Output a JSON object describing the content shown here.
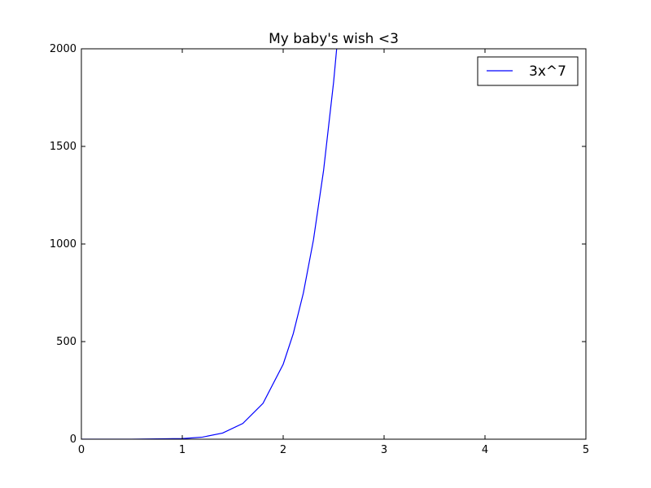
{
  "chart_data": {
    "type": "line",
    "title": "My baby's wish <3",
    "xlabel": "",
    "ylabel": "",
    "xlim": [
      0,
      5
    ],
    "ylim": [
      0,
      2000
    ],
    "x_ticks": [
      "0",
      "1",
      "2",
      "3",
      "4",
      "5"
    ],
    "y_ticks": [
      "0",
      "500",
      "1000",
      "1500",
      "2000"
    ],
    "grid": false,
    "legend_position": "top-right",
    "series": [
      {
        "name": "3x^7",
        "color": "#0000ff",
        "x": [
          0,
          0.5,
          1.0,
          1.2,
          1.4,
          1.6,
          1.8,
          2.0,
          2.1,
          2.2,
          2.3,
          2.4,
          2.5,
          2.53
        ],
        "y": [
          0,
          0.02,
          3,
          10.7,
          31.6,
          80.5,
          183.7,
          384,
          541,
          748.8,
          1021,
          1376,
          1831,
          2000
        ]
      }
    ]
  }
}
